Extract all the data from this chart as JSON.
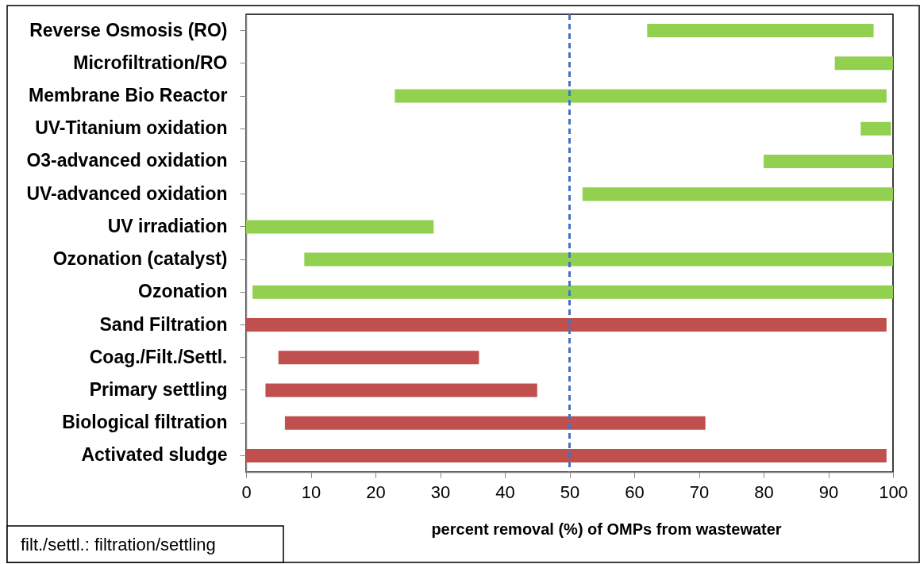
{
  "chart_data": {
    "type": "bar",
    "orientation": "horizontal",
    "categories": [
      "Reverse Osmosis (RO)",
      "Microfiltration/RO",
      "Membrane Bio Reactor",
      "UV-Titanium oxidation",
      "O3-advanced oxidation",
      "UV-advanced oxidation",
      "UV irradiation",
      "Ozonation (catalyst)",
      "Ozonation",
      "Sand Filtration",
      "Coag./Filt./Settl.",
      "Primary settling",
      "Biological filtration",
      "Activated sludge"
    ],
    "base": [
      62,
      91,
      23,
      95,
      80,
      52,
      0,
      9,
      1,
      0,
      5,
      3,
      6,
      0
    ],
    "values": [
      35,
      9,
      76,
      4.7,
      20,
      48,
      29,
      91,
      99,
      99,
      31,
      42,
      65,
      99
    ],
    "colors": [
      "#92d050",
      "#92d050",
      "#92d050",
      "#92d050",
      "#92d050",
      "#92d050",
      "#92d050",
      "#92d050",
      "#92d050",
      "#c0504d",
      "#c0504d",
      "#c0504d",
      "#c0504d",
      "#c0504d"
    ],
    "xlim": [
      0,
      100
    ],
    "xticks": [
      0,
      10,
      20,
      30,
      40,
      50,
      60,
      70,
      80,
      90,
      100
    ],
    "xlabel": "percent removal (%) of OMPs from wastewater",
    "ref_lines": [
      {
        "axis": "x",
        "value": 50,
        "color": "#4472c4",
        "line_style": "dashed"
      }
    ],
    "annotations": [
      "filt./settl.: filtration/settling"
    ]
  }
}
